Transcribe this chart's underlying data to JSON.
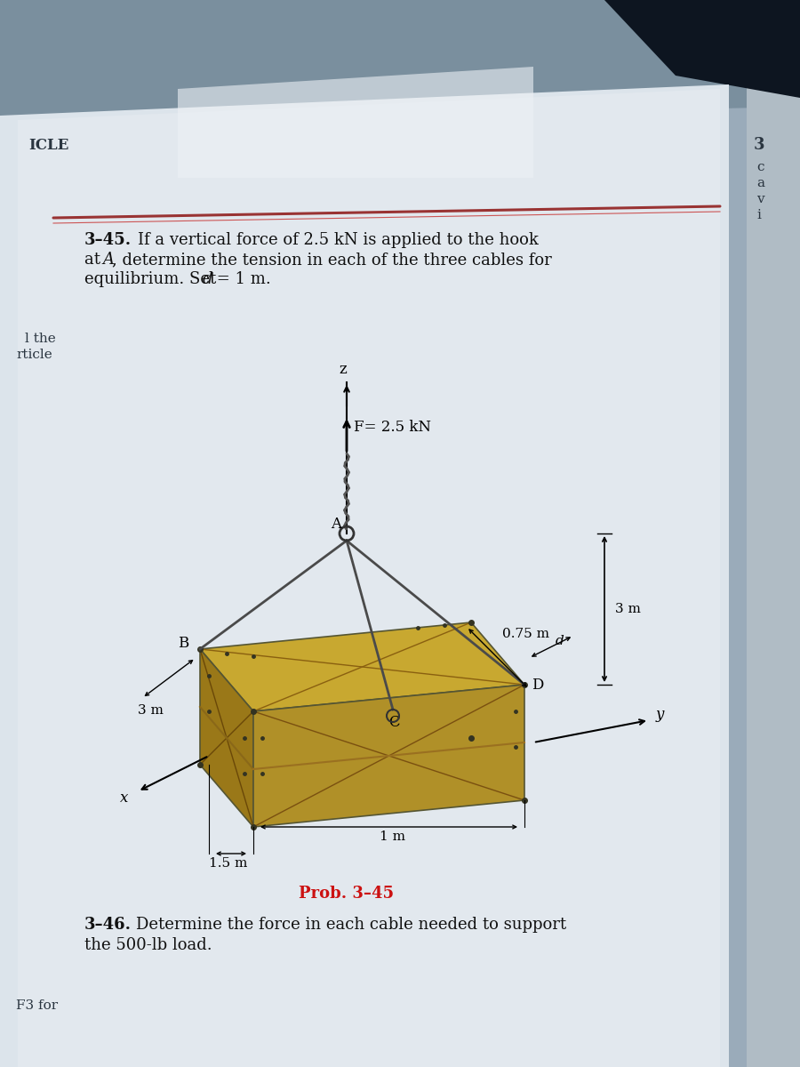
{
  "page_bg": "#dce3ea",
  "page_bg2": "#e8ecf0",
  "top_bg": "#9aabba",
  "top_bg2": "#7a8f9e",
  "right_page_bg": "#c5cdd4",
  "dark_corner": "#1a2530",
  "red_line": "#8b3030",
  "text_color": "#111111",
  "prob_title_color": "#cc1111",
  "box_top": "#c8a830",
  "box_left": "#9a7818",
  "box_right": "#b09028",
  "box_front": "#886010",
  "box_back_top": "#b09828",
  "cable_color": "#4a4a4a",
  "dim_color": "#111111",
  "top_left_text": "ICLE",
  "prob_label": "Prob. 3–45",
  "axis_z": "z",
  "axis_x": "x",
  "axis_y": "y",
  "label_A": "A",
  "label_B": "B",
  "label_C": "C",
  "label_D": "D",
  "label_d": "d",
  "force_label": "F= 2.5 kN",
  "dim_3m": "3 m",
  "dim_15m": "1.5 m",
  "dim_1m": "1 m",
  "dim_075m": "0.75 m",
  "left_text1": "l the",
  "left_text2": "rticle",
  "left_text3": "F3 for",
  "right_text1": "3",
  "right_text2": "c",
  "right_text3": "a",
  "right_text4": "v",
  "right_text5": "i"
}
